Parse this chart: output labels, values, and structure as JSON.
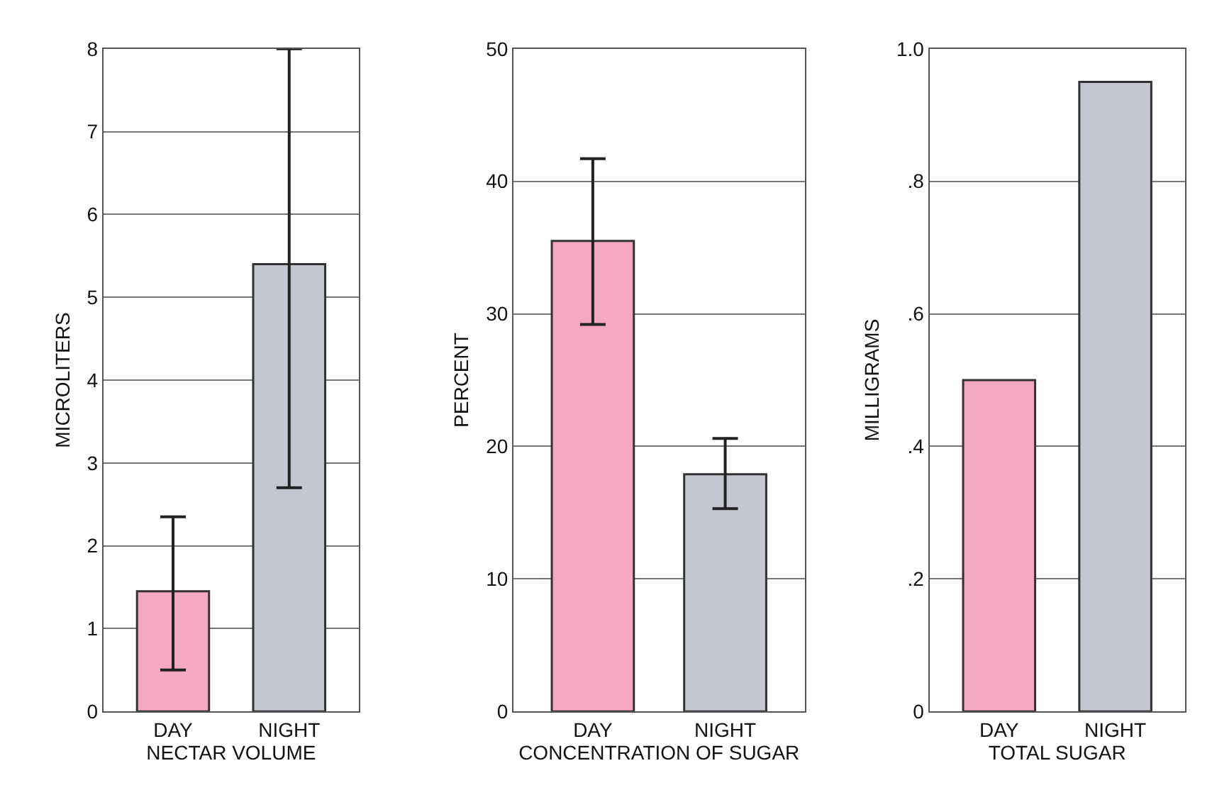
{
  "chart_data": [
    {
      "type": "bar",
      "xlabel": "NECTAR VOLUME",
      "ylabel": "MICROLITERS",
      "categories": [
        "DAY",
        "NIGHT"
      ],
      "values": [
        1.45,
        5.4
      ],
      "colors": [
        "#f4a8c2",
        "#c5c7d0"
      ],
      "errors": [
        [
          0.5,
          2.35
        ],
        [
          2.7,
          8.0
        ]
      ],
      "ylim": [
        0,
        8
      ],
      "yticks": [
        0,
        1,
        2,
        3,
        4,
        5,
        6,
        7,
        8
      ],
      "grid": "y"
    },
    {
      "type": "bar",
      "xlabel": "CONCENTRATION OF SUGAR",
      "ylabel": "PERCENT",
      "categories": [
        "DAY",
        "NIGHT"
      ],
      "values": [
        35.5,
        17.9
      ],
      "colors": [
        "#f4a8c2",
        "#c5c7d0"
      ],
      "errors": [
        [
          29.2,
          41.7
        ],
        [
          15.3,
          20.6
        ]
      ],
      "ylim": [
        0,
        50
      ],
      "yticks": [
        0,
        10,
        20,
        30,
        40,
        50
      ],
      "grid": "y"
    },
    {
      "type": "bar",
      "xlabel": "TOTAL SUGAR",
      "ylabel": "MILLIGRAMS",
      "categories": [
        "DAY",
        "NIGHT"
      ],
      "values": [
        0.5,
        0.95
      ],
      "colors": [
        "#f4a8c2",
        "#c5c7d0"
      ],
      "ylim": [
        0,
        1.0
      ],
      "yticks": [
        0,
        {
          "value": 0.2,
          "label": ".2"
        },
        {
          "value": 0.4,
          "label": ".4"
        },
        {
          "value": 0.6,
          "label": ".6"
        },
        {
          "value": 0.8,
          "label": ".8"
        },
        {
          "value": 1.0,
          "label": "1.0"
        }
      ],
      "grid": "y"
    }
  ]
}
